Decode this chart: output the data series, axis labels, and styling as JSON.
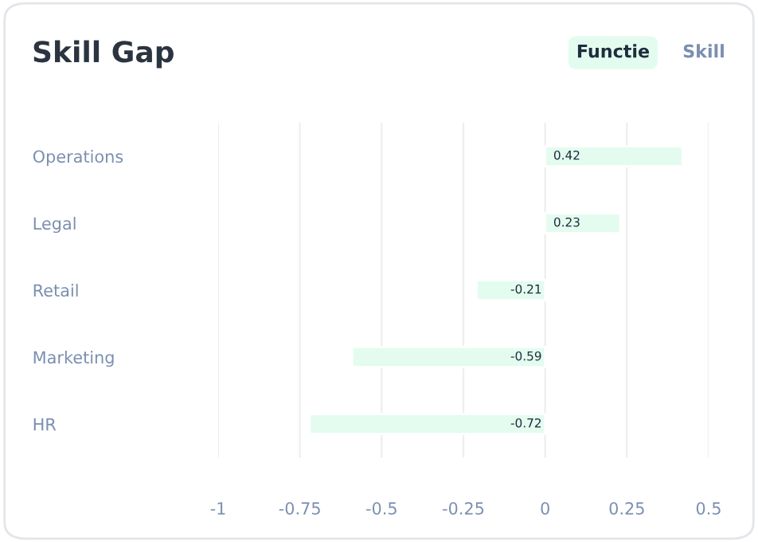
{
  "chart_data": {
    "type": "bar",
    "title": "Skill Gap",
    "orientation": "horizontal",
    "categories": [
      "Operations",
      "Legal",
      "Retail",
      "Marketing",
      "HR"
    ],
    "values": [
      0.42,
      0.23,
      -0.21,
      -0.59,
      -0.72
    ],
    "color": "#e3fcef",
    "xlim": [
      -1,
      0.5
    ],
    "xticks": [
      {
        "value": -1,
        "label": "-1"
      },
      {
        "value": -0.75,
        "label": "-0.75"
      },
      {
        "value": -0.5,
        "label": "-0.5"
      },
      {
        "value": -0.25,
        "label": "-0.25"
      },
      0,
      0.25,
      0.5
    ],
    "grid": "x",
    "data_labels": true,
    "annotations": [
      "Functie",
      "Skill"
    ]
  }
}
